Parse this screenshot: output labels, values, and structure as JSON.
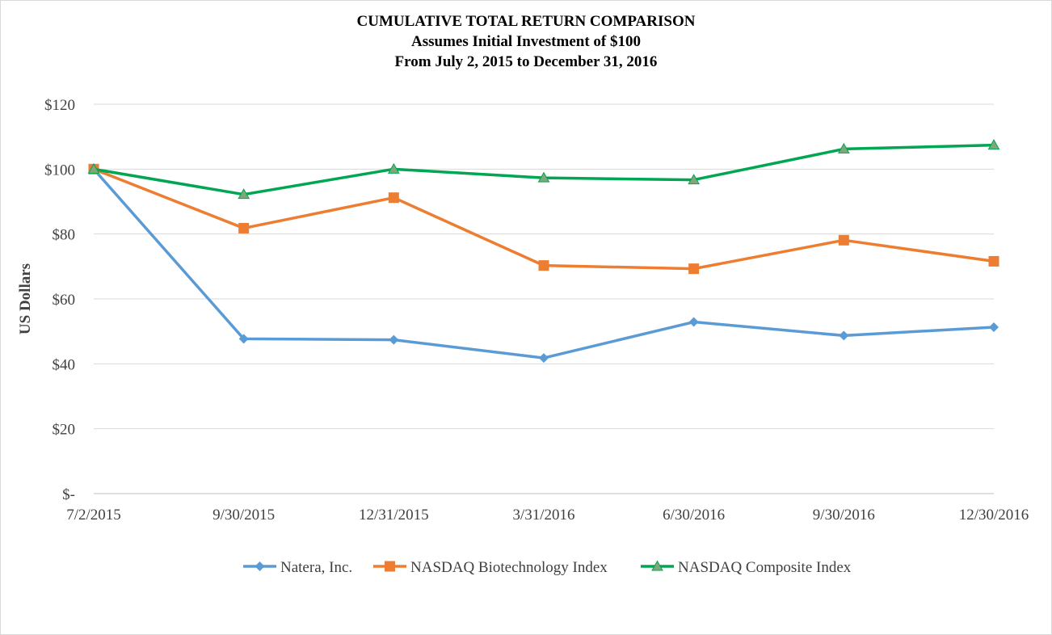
{
  "chart_data": {
    "type": "line",
    "title": "CUMULATIVE TOTAL RETURN COMPARISON",
    "subtitle": "Assumes Initial Investment of $100",
    "subtitle2": "From July 2, 2015 to December 31, 2016",
    "xlabel": "",
    "ylabel": "US Dollars",
    "ylim": [
      0,
      120
    ],
    "yticks": [
      0,
      20,
      40,
      60,
      80,
      100,
      120
    ],
    "ytick_labels": [
      "$-",
      "$20",
      "$40",
      "$60",
      "$80",
      "$100",
      "$120"
    ],
    "categories": [
      "7/2/2015",
      "9/30/2015",
      "12/31/2015",
      "3/31/2016",
      "6/30/2016",
      "9/30/2016",
      "12/30/2016"
    ],
    "grid": true,
    "legend_position": "bottom",
    "series": [
      {
        "name": "Natera, Inc.",
        "color": "#5b9bd5",
        "marker": "diamond",
        "values": [
          100,
          47.7,
          47.4,
          41.8,
          52.9,
          48.7,
          51.3
        ]
      },
      {
        "name": "NASDAQ Biotechnology Index",
        "color": "#ed7d31",
        "marker": "square",
        "values": [
          100,
          81.8,
          91.2,
          70.3,
          69.3,
          78.1,
          71.6
        ]
      },
      {
        "name": "NASDAQ Composite Index",
        "color": "#00a651",
        "marker": "triangle",
        "values": [
          100,
          92.2,
          100,
          97.3,
          96.7,
          106.2,
          107.4
        ]
      }
    ]
  }
}
